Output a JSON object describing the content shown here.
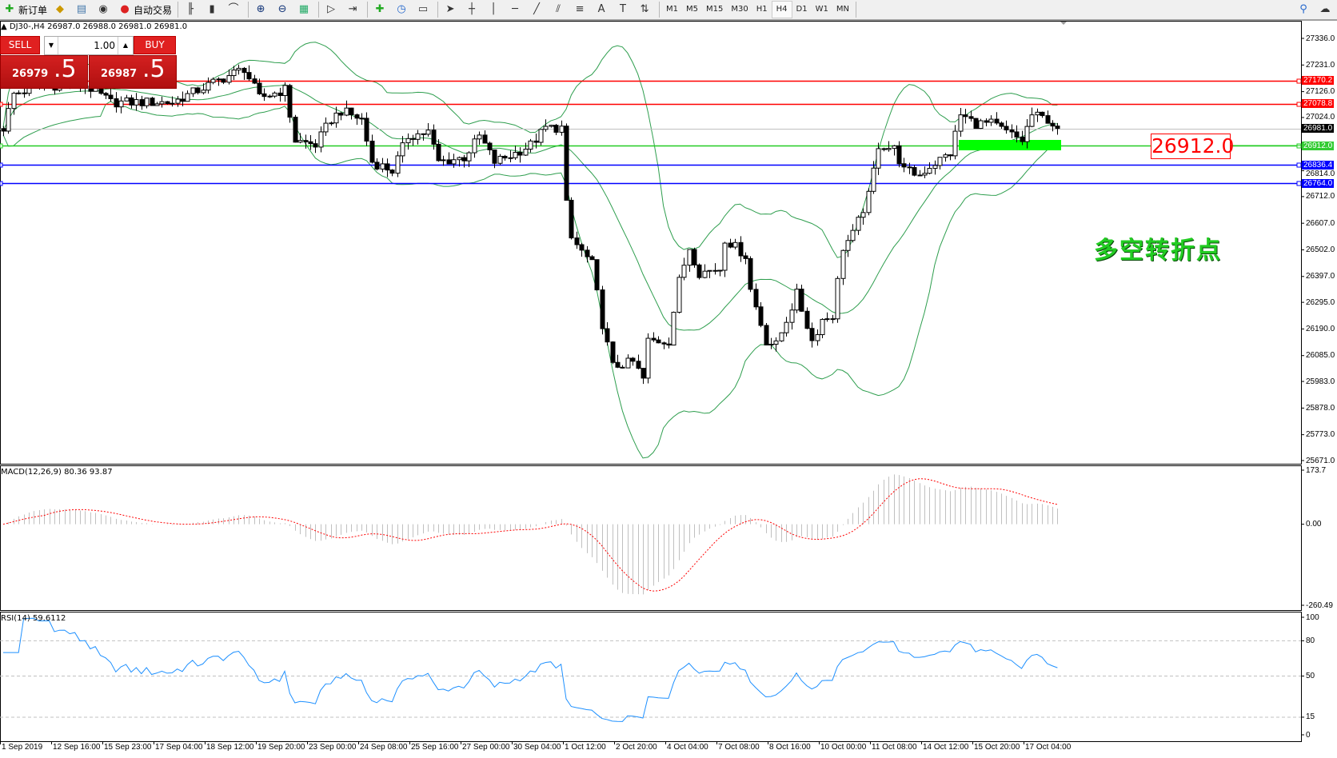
{
  "toolbar": {
    "new_order": "新订单",
    "auto_trading": "自动交易",
    "timeframes": [
      "M1",
      "M5",
      "M15",
      "M30",
      "H1",
      "H4",
      "D1",
      "W1",
      "MN"
    ],
    "active_timeframe": "H4",
    "icons": [
      "new-order-icon",
      "market-watch-icon",
      "navigator-icon",
      "signals-icon",
      "auto-trading-icon",
      "bar-chart-icon",
      "candlestick-icon",
      "line-chart-icon",
      "zoom-in-icon",
      "zoom-out-icon",
      "tile-windows-icon",
      "autoscroll-icon",
      "chart-shift-icon",
      "indicators-icon",
      "periods-icon",
      "templates-icon",
      "cursor-icon",
      "crosshair-icon",
      "vertical-line-icon",
      "horizontal-line-icon",
      "trendline-icon",
      "equidistant-channel-icon",
      "fibonacci-icon",
      "text-icon",
      "text-label-icon",
      "arrows-icon",
      "search-icon",
      "chat-icon"
    ]
  },
  "chart": {
    "header": "DJ30-,H4  26987.0 26988.0 26981.0 26981.0",
    "symbol": "DJ30-",
    "timeframe": "H4",
    "ohlc": {
      "open": 26987.0,
      "high": 26988.0,
      "low": 26981.0,
      "close": 26981.0
    }
  },
  "trade_panel": {
    "sell_label": "SELL",
    "buy_label": "BUY",
    "lots": "1.00",
    "sell_price_main": "26979",
    "sell_price_big": ".5",
    "buy_price_main": "26987",
    "buy_price_big": ".5"
  },
  "price_axis": {
    "range": [
      25671.0,
      27336.0
    ],
    "ticks": [
      "27336.0",
      "27231.0",
      "27126.0",
      "27024.0",
      "26814.0",
      "26712.0",
      "26607.0",
      "26502.0",
      "26397.0",
      "26295.0",
      "26190.0",
      "26085.0",
      "25983.0",
      "25878.0",
      "25773.0",
      "25671.0"
    ]
  },
  "levels": [
    {
      "price": "27170.2",
      "color": "#ff0000",
      "label_bg": "#ff0000"
    },
    {
      "price": "27078.8",
      "color": "#ff0000",
      "label_bg": "#ff0000"
    },
    {
      "price": "26981.0",
      "color": "#c0c0c0",
      "label_bg": "#000000"
    },
    {
      "price": "26912.0",
      "color": "#22cc22",
      "label_bg": "#33cc33"
    },
    {
      "price": "26836.4",
      "color": "#0000ff",
      "label_bg": "#0000ff"
    },
    {
      "price": "26764.0",
      "color": "#0000ff",
      "label_bg": "#0000ff"
    }
  ],
  "annotations": {
    "level_label": "26912.0",
    "text": "多空转折点",
    "text_color": "#22cc22",
    "zone_color": "#00ff00"
  },
  "price_path": [
    [
      0,
      26983
    ],
    [
      2,
      27117
    ],
    [
      8,
      27151
    ],
    [
      16,
      27151
    ],
    [
      21,
      27084
    ],
    [
      26,
      27084
    ],
    [
      33,
      27084
    ],
    [
      40,
      27151
    ],
    [
      47,
      27218
    ],
    [
      50,
      27101
    ],
    [
      55,
      27134
    ],
    [
      57,
      26933
    ],
    [
      61,
      26916
    ],
    [
      64,
      27017
    ],
    [
      66,
      27050
    ],
    [
      70,
      27017
    ],
    [
      72,
      26849
    ],
    [
      76,
      26815
    ],
    [
      79,
      26950
    ],
    [
      83,
      26967
    ],
    [
      85,
      26849
    ],
    [
      90,
      26866
    ],
    [
      93,
      26950
    ],
    [
      96,
      26849
    ],
    [
      100,
      26883
    ],
    [
      103,
      26916
    ],
    [
      106,
      26983
    ],
    [
      109,
      26983
    ],
    [
      110,
      26680
    ],
    [
      111,
      26546
    ],
    [
      115,
      26445
    ],
    [
      117,
      26210
    ],
    [
      119,
      26042
    ],
    [
      123,
      26059
    ],
    [
      125,
      25992
    ],
    [
      126,
      26143
    ],
    [
      130,
      26143
    ],
    [
      132,
      26378
    ],
    [
      134,
      26512
    ],
    [
      136,
      26412
    ],
    [
      140,
      26428
    ],
    [
      141,
      26546
    ],
    [
      145,
      26479
    ],
    [
      146,
      26345
    ],
    [
      149,
      26143
    ],
    [
      151,
      26126
    ],
    [
      155,
      26328
    ],
    [
      158,
      26143
    ],
    [
      160,
      26227
    ],
    [
      162,
      26244
    ],
    [
      164,
      26512
    ],
    [
      166,
      26563
    ],
    [
      169,
      26714
    ],
    [
      171,
      26916
    ],
    [
      174,
      26900
    ],
    [
      176,
      26815
    ],
    [
      179,
      26798
    ],
    [
      181,
      26832
    ],
    [
      185,
      26883
    ],
    [
      187,
      27034
    ],
    [
      190,
      27000
    ],
    [
      193,
      27000
    ],
    [
      196,
      26966
    ],
    [
      199,
      26933
    ],
    [
      201,
      27034
    ],
    [
      204,
      27017
    ],
    [
      206,
      26981
    ]
  ],
  "x_axis": {
    "labels": [
      "1 Sep 2019",
      "12 Sep 16:00",
      "15 Sep 23:00",
      "17 Sep 04:00",
      "18 Sep 12:00",
      "19 Sep 20:00",
      "23 Sep 00:00",
      "24 Sep 08:00",
      "25 Sep 16:00",
      "27 Sep 00:00",
      "30 Sep 04:00",
      "1 Oct 12:00",
      "2 Oct 20:00",
      "4 Oct 04:00",
      "7 Oct 08:00",
      "8 Oct 16:00",
      "10 Oct 00:00",
      "11 Oct 08:00",
      "14 Oct 12:00",
      "15 Oct 20:00",
      "17 Oct 04:00"
    ]
  },
  "macd": {
    "label": "MACD(12,26,9) 80.36 93.87",
    "axis": [
      "173.7",
      "0.00",
      "-260.49"
    ],
    "histogram_color": "#c0c0c0",
    "signal_color": "#ff0000"
  },
  "rsi": {
    "label": "RSI(14) 59.6112",
    "axis": [
      "100",
      "80",
      "50",
      "15",
      "0"
    ],
    "levels": [
      80,
      50,
      15
    ],
    "line_color": "#1e90ff"
  },
  "bollinger_color": "#2e9e4e"
}
